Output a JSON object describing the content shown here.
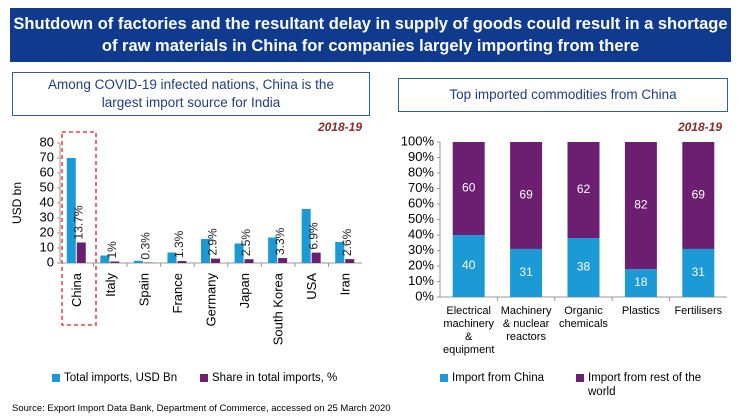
{
  "banner": {
    "title": "Shutdown of factories and the resultant delay in supply of goods could result in a shortage of raw materials in China for companies largely importing from there"
  },
  "chart_data": [
    {
      "type": "bar",
      "title": "Among COVID-19 infected nations, China is the largest import source for India",
      "annotation": "2018-19",
      "y_label": "USD bn",
      "categories": [
        "China",
        "Italy",
        "Spain",
        "France",
        "Germany",
        "Japan",
        "South Korea",
        "USA",
        "Iran"
      ],
      "series": [
        {
          "name": "Total imports, USD Bn",
          "color": "#1b9ad6",
          "values": [
            70,
            5,
            1.5,
            7,
            16,
            13,
            17,
            36,
            14
          ]
        },
        {
          "name": "Share in total imports, %",
          "color": "#6c1f70",
          "values": [
            13.7,
            1,
            0.3,
            1.3,
            2.9,
            2.5,
            3.3,
            6.9,
            2.6
          ],
          "value_labels": [
            "13.7%",
            "1%",
            "0.3%",
            "1.3%",
            "2.9%",
            "2.5%",
            "3.3%",
            "6.9%",
            "2.6%"
          ]
        }
      ],
      "ylim": [
        0,
        80
      ],
      "yticks": [
        0,
        10,
        20,
        30,
        40,
        50,
        60,
        70,
        80
      ],
      "grid": false,
      "stacked": false
    },
    {
      "type": "bar",
      "title": "Top imported commodities from China",
      "annotation": "2018-19",
      "categories": [
        "Electrical machinery & equipment",
        "Machinery & nuclear reactors",
        "Organic chemicals",
        "Plastics",
        "Fertilisers"
      ],
      "series": [
        {
          "name": "Import from China",
          "color": "#1b9ad6",
          "values": [
            40,
            31,
            38,
            18,
            31
          ]
        },
        {
          "name": "Import from rest of the world",
          "color": "#6c1f70",
          "values": [
            60,
            69,
            62,
            82,
            69
          ]
        }
      ],
      "ylim": [
        0,
        100
      ],
      "yticks": [
        {
          "value": 0,
          "label": "0%"
        },
        {
          "value": 10,
          "label": "10%"
        },
        {
          "value": 20,
          "label": "20%"
        },
        {
          "value": 30,
          "label": "30%"
        },
        {
          "value": 40,
          "label": "40%"
        },
        {
          "value": 50,
          "label": "50%"
        },
        {
          "value": 60,
          "label": "60%"
        },
        {
          "value": 70,
          "label": "70%"
        },
        {
          "value": 80,
          "label": "80%"
        },
        {
          "value": 90,
          "label": "90%"
        },
        {
          "value": 100,
          "label": "100%"
        }
      ],
      "grid": false,
      "stacked": true
    }
  ],
  "source": "Source: Export Import Data Bank, Department of Commerce, accessed on 25 March 2020"
}
